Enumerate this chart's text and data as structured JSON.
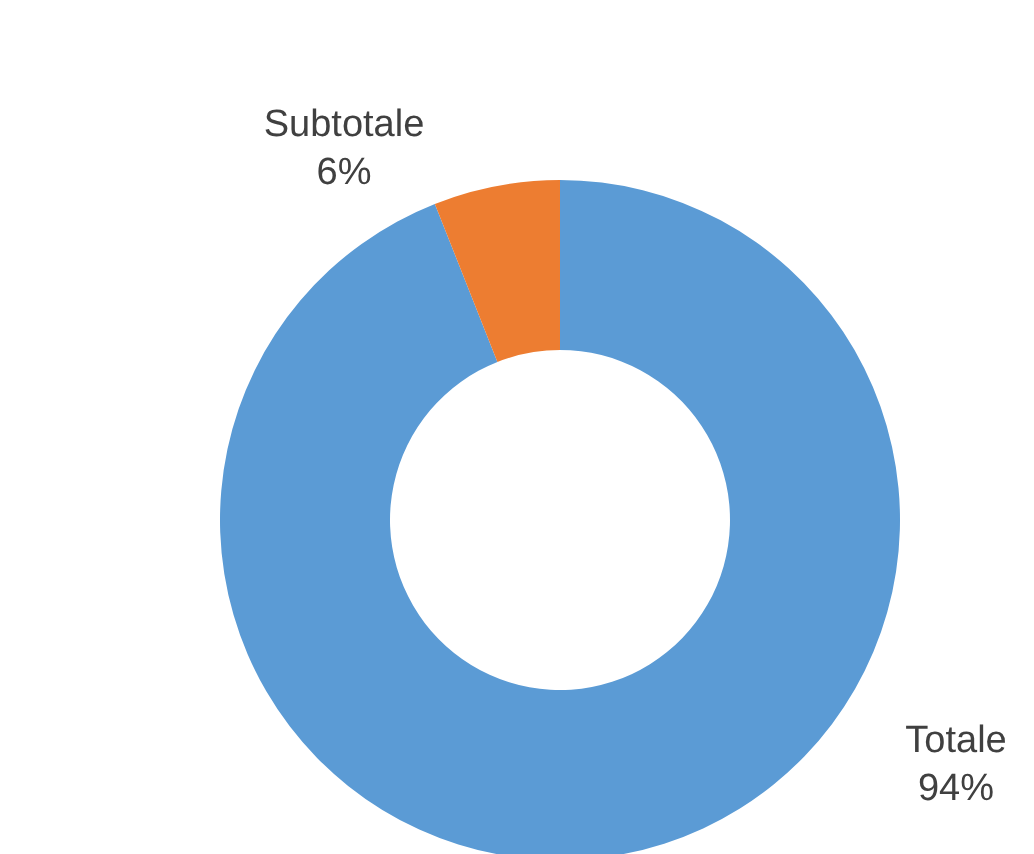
{
  "chart_data": {
    "type": "donut",
    "categories": [
      "Totale",
      "Subtotale"
    ],
    "values": [
      94,
      6
    ],
    "colors": [
      "#5b9bd5",
      "#ed7d31"
    ],
    "value_labels": [
      "94%",
      "6%"
    ]
  }
}
